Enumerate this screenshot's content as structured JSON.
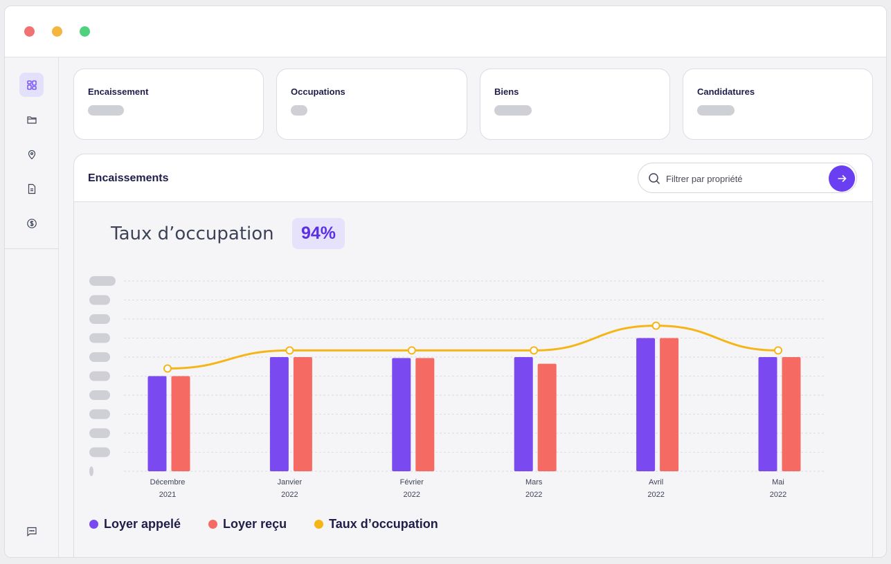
{
  "window": {
    "controls": [
      "close",
      "minimize",
      "maximize"
    ]
  },
  "sidebar": {
    "items": [
      {
        "name": "dashboard",
        "icon": "grid-icon",
        "active": true
      },
      {
        "name": "folders",
        "icon": "folder-icon",
        "active": false
      },
      {
        "name": "locations",
        "icon": "location-pin-icon",
        "active": false
      },
      {
        "name": "documents",
        "icon": "document-icon",
        "active": false
      },
      {
        "name": "payments",
        "icon": "dollar-coin-icon",
        "active": false
      }
    ],
    "bottom_item": {
      "name": "messages",
      "icon": "chat-icon"
    }
  },
  "cards": [
    {
      "title": "Encaissement"
    },
    {
      "title": "Occupations"
    },
    {
      "title": "Biens"
    },
    {
      "title": "Candidatures"
    }
  ],
  "panel": {
    "title": "Encaissements",
    "search": {
      "placeholder": "Filtrer par propriété"
    },
    "kpi": {
      "label": "Taux d’occupation",
      "value": "94%"
    }
  },
  "colors": {
    "accent": "#6a3ff2",
    "loyer_appele": "#7a4af0",
    "loyer_recu": "#f56a62",
    "taux": "#f5b517"
  },
  "chart_data": {
    "type": "bar",
    "title": "Encaissements",
    "categories": [
      {
        "month": "Décembre",
        "year": "2021"
      },
      {
        "month": "Janvier",
        "year": "2022"
      },
      {
        "month": "Février",
        "year": "2022"
      },
      {
        "month": "Mars",
        "year": "2022"
      },
      {
        "month": "Avril",
        "year": "2022"
      },
      {
        "month": "Mai",
        "year": "2022"
      }
    ],
    "ylim": [
      0,
      10
    ],
    "y_ticks_hidden": true,
    "series": [
      {
        "name": "Loyer appelé",
        "type": "bar",
        "values": [
          5.0,
          6.0,
          5.95,
          6.0,
          7.0,
          6.0
        ]
      },
      {
        "name": "Loyer reçu",
        "type": "bar",
        "values": [
          5.0,
          6.0,
          5.95,
          5.65,
          7.0,
          6.0
        ]
      },
      {
        "name": "Taux d’occupation",
        "type": "line",
        "values": [
          5.4,
          6.35,
          6.35,
          6.35,
          7.65,
          6.35
        ]
      }
    ],
    "legend": [
      {
        "label": "Loyer appelé",
        "color": "#7a4af0"
      },
      {
        "label": "Loyer reçu",
        "color": "#f56a62"
      },
      {
        "label": "Taux d’occupation",
        "color": "#f5b517"
      }
    ],
    "grid": true
  }
}
